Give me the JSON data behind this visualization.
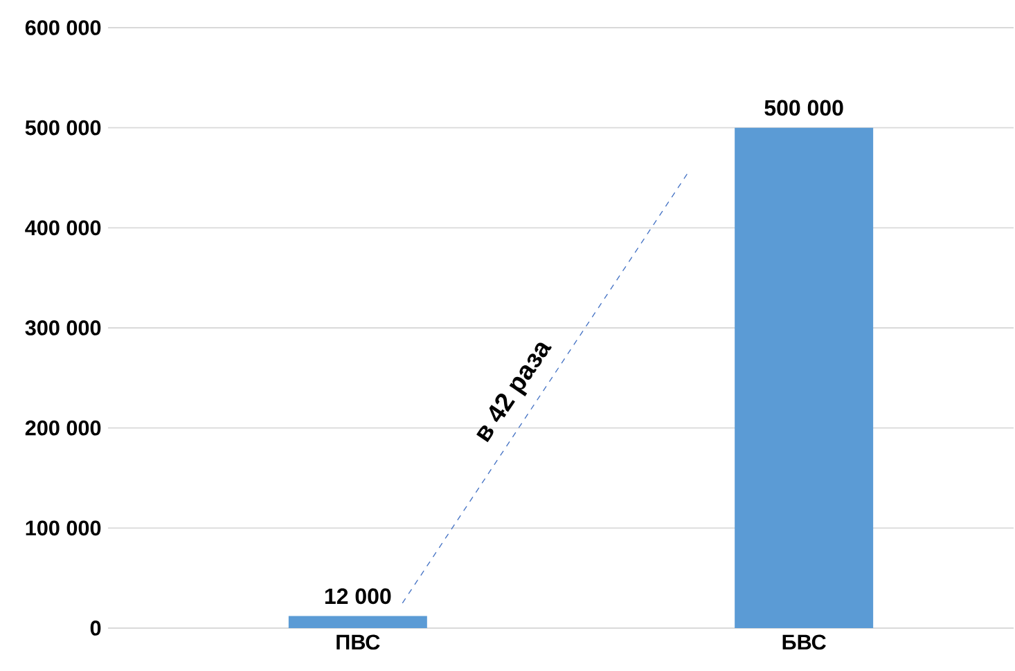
{
  "chart_data": {
    "type": "bar",
    "categories": [
      "ПВС",
      "БВС"
    ],
    "values": [
      12000,
      500000
    ],
    "color": "#5b9bd5",
    "value_labels": [
      "12 000",
      "500 000"
    ],
    "ylim": [
      0,
      600000
    ],
    "yticks": [
      {
        "value": 0,
        "label": "0"
      },
      {
        "value": 100000,
        "label": "100 000"
      },
      {
        "value": 200000,
        "label": "200 000"
      },
      {
        "value": 300000,
        "label": "300 000"
      },
      {
        "value": 400000,
        "label": "400 000"
      },
      {
        "value": 500000,
        "label": "500 000"
      },
      {
        "value": 600000,
        "label": "600 000"
      }
    ],
    "grid": "y",
    "annotations": [
      "в 42 раза"
    ]
  }
}
